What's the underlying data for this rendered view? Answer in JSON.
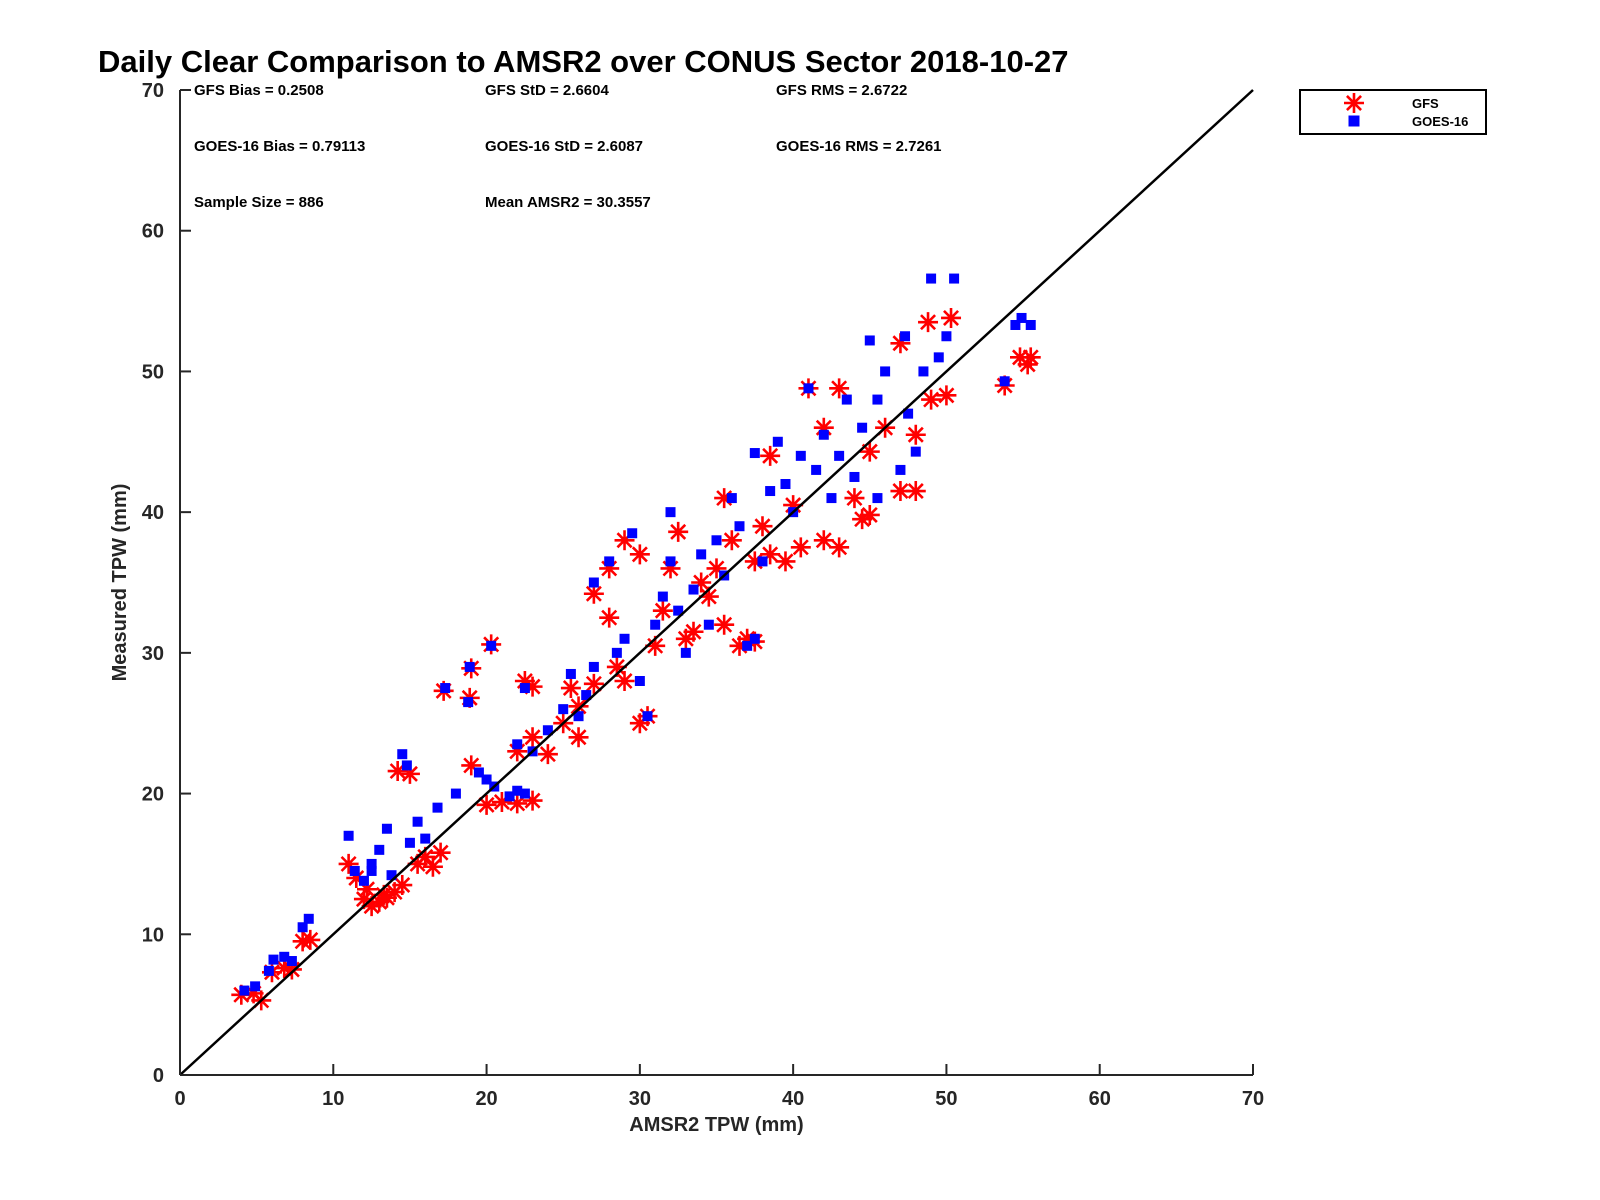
{
  "chart_data": {
    "type": "scatter",
    "title": "Daily Clear Comparison to AMSR2 over CONUS Sector 2018-10-27",
    "xlabel": "AMSR2 TPW (mm)",
    "ylabel": "Measured TPW (mm)",
    "xlim": [
      0,
      70
    ],
    "ylim": [
      0,
      70
    ],
    "xticks": [
      "0",
      "10",
      "20",
      "30",
      "40",
      "50",
      "60",
      "70"
    ],
    "yticks": [
      "0",
      "10",
      "20",
      "30",
      "40",
      "50",
      "60",
      "70"
    ],
    "reference_line": "1:1",
    "legend_position": "outside top-right",
    "stats": [
      "GFS Bias = 0.2508",
      "GFS StD = 2.6604",
      "GFS RMS = 2.6722",
      "GOES-16 Bias = 0.79113",
      "GOES-16 StD = 2.6087",
      "GOES-16 RMS = 2.7261",
      "Sample Size = 886",
      "Mean AMSR2 = 30.3557"
    ],
    "series": [
      {
        "name": "GFS",
        "marker": "asterisk",
        "color": "#ff0000",
        "points": [
          [
            4,
            5.7
          ],
          [
            4.8,
            5.8
          ],
          [
            5.3,
            5.3
          ],
          [
            6,
            7.3
          ],
          [
            6.8,
            7.6
          ],
          [
            7.3,
            7.5
          ],
          [
            8,
            9.5
          ],
          [
            8.5,
            9.6
          ],
          [
            11,
            15
          ],
          [
            11.5,
            14
          ],
          [
            12,
            12.5
          ],
          [
            12.5,
            12
          ],
          [
            13,
            12.3
          ],
          [
            13.5,
            12.6
          ],
          [
            14,
            13
          ],
          [
            14.5,
            13.5
          ],
          [
            12.2,
            13.2
          ],
          [
            13.3,
            12.8
          ],
          [
            14.2,
            21.6
          ],
          [
            15,
            21.4
          ],
          [
            15.5,
            15
          ],
          [
            16,
            15.5
          ],
          [
            16.5,
            14.8
          ],
          [
            17,
            15.8
          ],
          [
            17.2,
            27.3
          ],
          [
            19,
            28.9
          ],
          [
            18.9,
            26.8
          ],
          [
            19,
            22
          ],
          [
            20,
            19.2
          ],
          [
            21,
            19.4
          ],
          [
            22,
            19.3
          ],
          [
            23,
            19.5
          ],
          [
            20.3,
            30.6
          ],
          [
            22.5,
            28
          ],
          [
            23,
            27.6
          ],
          [
            22,
            23
          ],
          [
            23,
            24
          ],
          [
            24,
            22.8
          ],
          [
            25,
            25
          ],
          [
            26,
            24
          ],
          [
            25.5,
            27.5
          ],
          [
            26,
            26.2
          ],
          [
            27,
            27.8
          ],
          [
            27,
            34.2
          ],
          [
            28,
            32.5
          ],
          [
            28,
            36
          ],
          [
            28.5,
            29
          ],
          [
            29,
            28
          ],
          [
            29,
            38
          ],
          [
            30,
            37
          ],
          [
            30,
            25
          ],
          [
            30.5,
            25.5
          ],
          [
            31,
            30.5
          ],
          [
            31.5,
            33
          ],
          [
            32,
            36
          ],
          [
            32.5,
            38.6
          ],
          [
            33,
            31
          ],
          [
            33.5,
            31.5
          ],
          [
            34,
            35
          ],
          [
            34.5,
            34
          ],
          [
            35,
            36
          ],
          [
            35.5,
            32
          ],
          [
            35.5,
            41
          ],
          [
            36,
            38
          ],
          [
            36.5,
            30.5
          ],
          [
            37,
            31
          ],
          [
            37.5,
            30.8
          ],
          [
            37.5,
            36.5
          ],
          [
            38,
            39
          ],
          [
            38.5,
            37
          ],
          [
            38.5,
            44
          ],
          [
            39.5,
            36.5
          ],
          [
            40,
            40.5
          ],
          [
            40.5,
            37.5
          ],
          [
            41,
            48.8
          ],
          [
            42,
            38
          ],
          [
            42,
            46
          ],
          [
            43,
            37.5
          ],
          [
            43,
            48.8
          ],
          [
            44,
            41
          ],
          [
            44.5,
            39.5
          ],
          [
            45,
            39.8
          ],
          [
            45,
            44.3
          ],
          [
            46,
            46
          ],
          [
            47,
            41.5
          ],
          [
            47,
            52
          ],
          [
            48,
            41.5
          ],
          [
            48,
            45.5
          ],
          [
            48.8,
            53.5
          ],
          [
            49,
            48
          ],
          [
            50,
            48.3
          ],
          [
            50.3,
            53.8
          ],
          [
            53.8,
            49
          ],
          [
            54.8,
            51
          ],
          [
            55.3,
            50.5
          ],
          [
            55.5,
            51
          ]
        ]
      },
      {
        "name": "GOES-16",
        "marker": "square",
        "color": "#0000ff",
        "points": [
          [
            4.2,
            6
          ],
          [
            4.9,
            6.3
          ],
          [
            5.8,
            7.4
          ],
          [
            6.1,
            8.2
          ],
          [
            6.8,
            8.4
          ],
          [
            7.3,
            8.1
          ],
          [
            8,
            10.5
          ],
          [
            8.4,
            11.1
          ],
          [
            11,
            17
          ],
          [
            11.4,
            14.5
          ],
          [
            12,
            13.8
          ],
          [
            12.5,
            15
          ],
          [
            13,
            16
          ],
          [
            13.5,
            17.5
          ],
          [
            14.5,
            22.8
          ],
          [
            14.8,
            22
          ],
          [
            12.5,
            14.5
          ],
          [
            13.8,
            14.2
          ],
          [
            15,
            16.5
          ],
          [
            15.5,
            18
          ],
          [
            16,
            16.8
          ],
          [
            16.8,
            19
          ],
          [
            17.3,
            27.5
          ],
          [
            18,
            20
          ],
          [
            18.9,
            29
          ],
          [
            18.8,
            26.5
          ],
          [
            19.5,
            21.5
          ],
          [
            20,
            21
          ],
          [
            20.5,
            20.5
          ],
          [
            21.5,
            19.8
          ],
          [
            22,
            20.2
          ],
          [
            22.5,
            20
          ],
          [
            20.3,
            30.5
          ],
          [
            22.5,
            27.5
          ],
          [
            22,
            23.5
          ],
          [
            23,
            23
          ],
          [
            24,
            24.5
          ],
          [
            25,
            26
          ],
          [
            26,
            25.5
          ],
          [
            25.5,
            28.5
          ],
          [
            26.5,
            27
          ],
          [
            27,
            29
          ],
          [
            27,
            35
          ],
          [
            28,
            36.5
          ],
          [
            28.5,
            30
          ],
          [
            29,
            31
          ],
          [
            29.5,
            38.5
          ],
          [
            30,
            28
          ],
          [
            30.5,
            25.5
          ],
          [
            31,
            32
          ],
          [
            31.5,
            34
          ],
          [
            32,
            40
          ],
          [
            32,
            36.5
          ],
          [
            32.5,
            33
          ],
          [
            33,
            30
          ],
          [
            33.5,
            34.5
          ],
          [
            34,
            37
          ],
          [
            34.5,
            32
          ],
          [
            35,
            38
          ],
          [
            35.5,
            35.5
          ],
          [
            36,
            41
          ],
          [
            36.5,
            39
          ],
          [
            37,
            30.5
          ],
          [
            37.5,
            31
          ],
          [
            37.5,
            44.2
          ],
          [
            38,
            36.5
          ],
          [
            38.5,
            41.5
          ],
          [
            39,
            45
          ],
          [
            39.5,
            42
          ],
          [
            40,
            40
          ],
          [
            40.5,
            44
          ],
          [
            41,
            48.8
          ],
          [
            41.5,
            43
          ],
          [
            42,
            45.5
          ],
          [
            42.5,
            41
          ],
          [
            43,
            44
          ],
          [
            43.5,
            48
          ],
          [
            44,
            42.5
          ],
          [
            44.5,
            46
          ],
          [
            45,
            52.2
          ],
          [
            45.5,
            48
          ],
          [
            45.5,
            41
          ],
          [
            46,
            50
          ],
          [
            47,
            43
          ],
          [
            47.3,
            52.5
          ],
          [
            47.5,
            47
          ],
          [
            48,
            44.3
          ],
          [
            48.5,
            50
          ],
          [
            49,
            56.6
          ],
          [
            49.5,
            51
          ],
          [
            50,
            52.5
          ],
          [
            50.5,
            56.6
          ],
          [
            53.8,
            49.3
          ],
          [
            54.5,
            53.3
          ],
          [
            54.9,
            53.8
          ],
          [
            55.5,
            53.3
          ]
        ]
      }
    ]
  }
}
